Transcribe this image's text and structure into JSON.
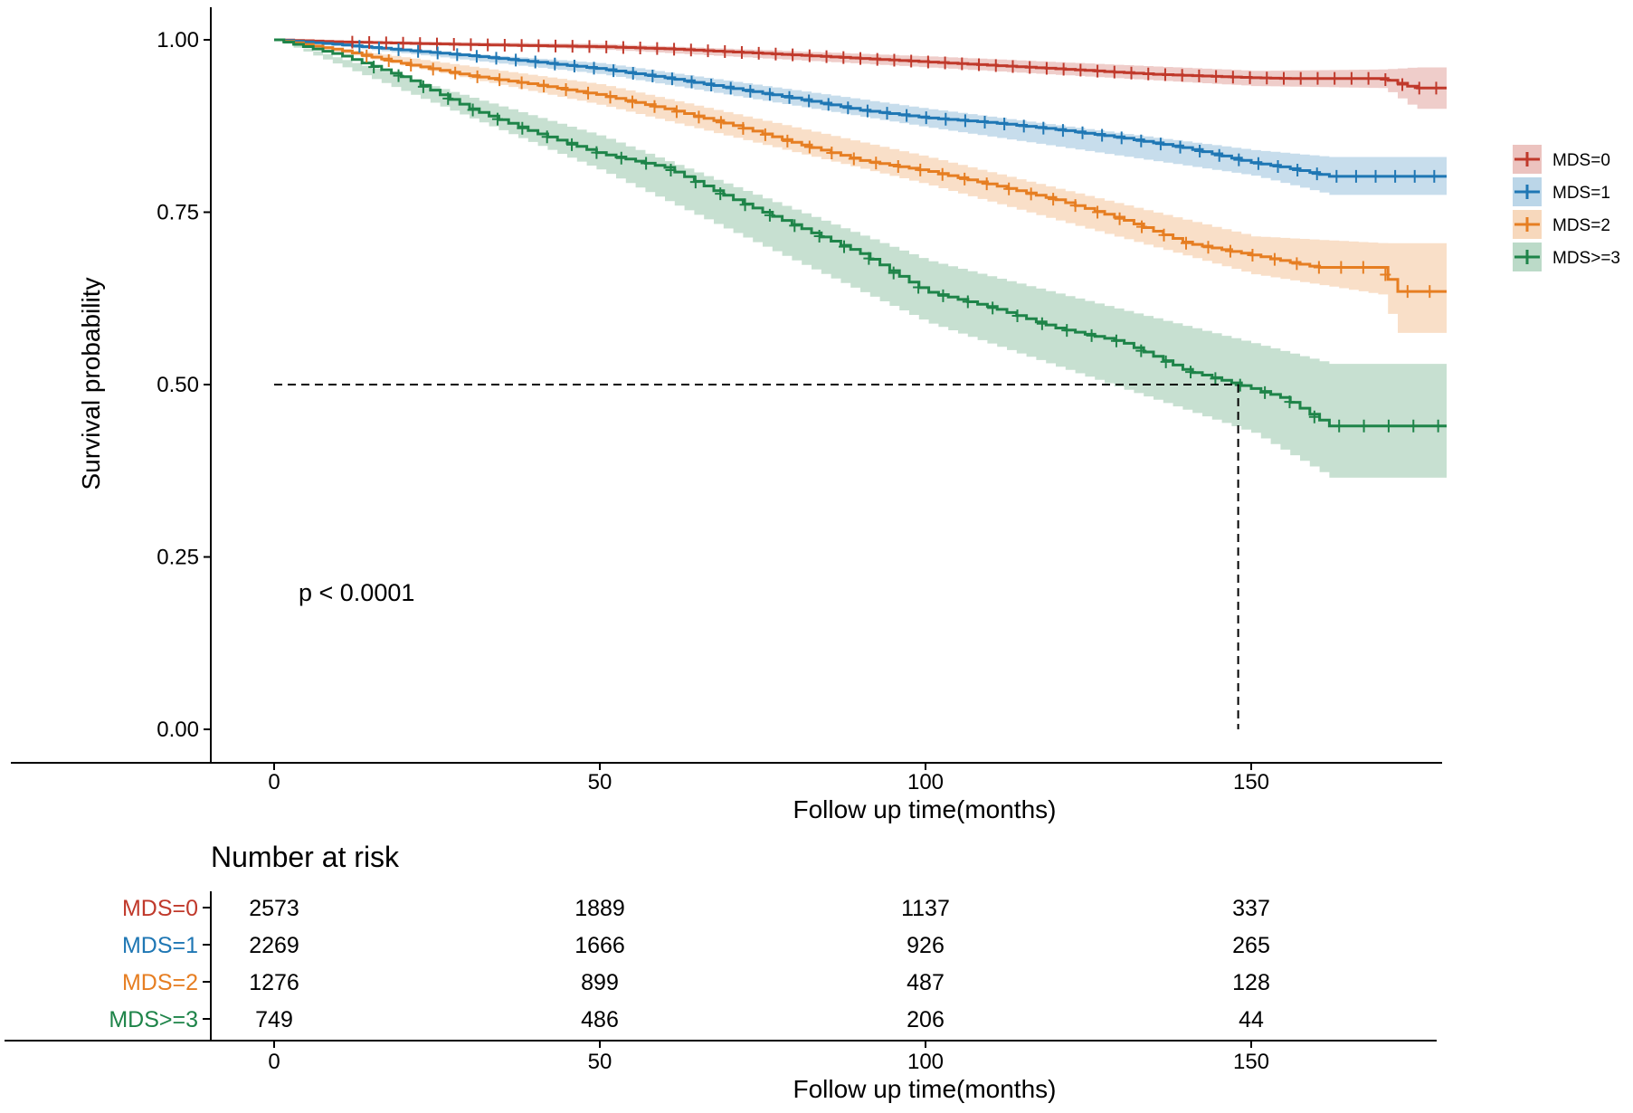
{
  "chart_data": {
    "type": "line",
    "subtype": "kaplan-meier",
    "xlabel": "Follow up time(months)",
    "ylabel": "Survival probability",
    "xlim": [
      -10,
      180
    ],
    "ylim": [
      0,
      1
    ],
    "x_ticks": [
      0,
      50,
      100,
      150
    ],
    "y_ticks": [
      0.0,
      0.25,
      0.5,
      0.75,
      1.0
    ],
    "y_tick_labels": [
      "0.00",
      "0.25",
      "0.50",
      "0.75",
      "1.00"
    ],
    "x_tick_labels": [
      "0",
      "50",
      "100",
      "150"
    ],
    "annotation": "p < 0.0001",
    "median_line": {
      "y": 0.5,
      "x": 148
    },
    "legend_position": "right",
    "series": [
      {
        "name": "MDS=0",
        "color": "#C0392B",
        "points": [
          [
            0,
            1.0
          ],
          [
            10,
            0.997
          ],
          [
            30,
            0.993
          ],
          [
            50,
            0.99
          ],
          [
            60,
            0.987
          ],
          [
            80,
            0.978
          ],
          [
            100,
            0.968
          ],
          [
            120,
            0.958
          ],
          [
            135,
            0.95
          ],
          [
            150,
            0.945
          ],
          [
            155,
            0.944
          ],
          [
            170,
            0.944
          ],
          [
            175,
            0.93
          ],
          [
            180,
            0.93
          ]
        ],
        "ci_upper": [
          [
            0,
            1.0
          ],
          [
            50,
            0.994
          ],
          [
            100,
            0.976
          ],
          [
            150,
            0.955
          ],
          [
            170,
            0.957
          ],
          [
            175,
            0.96
          ],
          [
            180,
            0.96
          ]
        ],
        "ci_lower": [
          [
            0,
            1.0
          ],
          [
            50,
            0.986
          ],
          [
            100,
            0.96
          ],
          [
            150,
            0.933
          ],
          [
            170,
            0.93
          ],
          [
            175,
            0.9
          ],
          [
            180,
            0.9
          ]
        ]
      },
      {
        "name": "MDS=1",
        "color": "#1F77B4",
        "points": [
          [
            0,
            1.0
          ],
          [
            10,
            0.993
          ],
          [
            20,
            0.985
          ],
          [
            30,
            0.977
          ],
          [
            40,
            0.968
          ],
          [
            50,
            0.958
          ],
          [
            60,
            0.945
          ],
          [
            70,
            0.93
          ],
          [
            80,
            0.915
          ],
          [
            90,
            0.898
          ],
          [
            100,
            0.887
          ],
          [
            110,
            0.88
          ],
          [
            120,
            0.87
          ],
          [
            130,
            0.858
          ],
          [
            140,
            0.843
          ],
          [
            150,
            0.822
          ],
          [
            155,
            0.815
          ],
          [
            162,
            0.802
          ],
          [
            170,
            0.802
          ],
          [
            180,
            0.802
          ]
        ],
        "ci_upper": [
          [
            0,
            1.0
          ],
          [
            50,
            0.966
          ],
          [
            100,
            0.9
          ],
          [
            150,
            0.84
          ],
          [
            162,
            0.83
          ],
          [
            180,
            0.83
          ]
        ],
        "ci_lower": [
          [
            0,
            1.0
          ],
          [
            50,
            0.95
          ],
          [
            100,
            0.873
          ],
          [
            150,
            0.803
          ],
          [
            162,
            0.775
          ],
          [
            180,
            0.775
          ]
        ]
      },
      {
        "name": "MDS=2",
        "color": "#E67E22",
        "points": [
          [
            0,
            1.0
          ],
          [
            10,
            0.985
          ],
          [
            20,
            0.965
          ],
          [
            30,
            0.948
          ],
          [
            40,
            0.935
          ],
          [
            50,
            0.92
          ],
          [
            60,
            0.9
          ],
          [
            70,
            0.877
          ],
          [
            80,
            0.85
          ],
          [
            90,
            0.825
          ],
          [
            100,
            0.81
          ],
          [
            110,
            0.79
          ],
          [
            120,
            0.768
          ],
          [
            130,
            0.74
          ],
          [
            140,
            0.705
          ],
          [
            150,
            0.688
          ],
          [
            160,
            0.67
          ],
          [
            170,
            0.67
          ],
          [
            172,
            0.635
          ],
          [
            180,
            0.635
          ]
        ],
        "ci_upper": [
          [
            0,
            1.0
          ],
          [
            50,
            0.935
          ],
          [
            100,
            0.83
          ],
          [
            150,
            0.715
          ],
          [
            170,
            0.705
          ],
          [
            180,
            0.705
          ]
        ],
        "ci_lower": [
          [
            0,
            1.0
          ],
          [
            50,
            0.905
          ],
          [
            100,
            0.79
          ],
          [
            150,
            0.66
          ],
          [
            170,
            0.63
          ],
          [
            172,
            0.575
          ],
          [
            180,
            0.575
          ]
        ]
      },
      {
        "name": "MDS>=3",
        "color": "#1E8449",
        "points": [
          [
            0,
            1.0
          ],
          [
            10,
            0.978
          ],
          [
            20,
            0.945
          ],
          [
            30,
            0.9
          ],
          [
            40,
            0.865
          ],
          [
            50,
            0.835
          ],
          [
            60,
            0.815
          ],
          [
            70,
            0.77
          ],
          [
            80,
            0.73
          ],
          [
            90,
            0.69
          ],
          [
            100,
            0.635
          ],
          [
            110,
            0.612
          ],
          [
            120,
            0.582
          ],
          [
            130,
            0.562
          ],
          [
            140,
            0.52
          ],
          [
            148,
            0.5
          ],
          [
            155,
            0.48
          ],
          [
            162,
            0.44
          ],
          [
            170,
            0.44
          ],
          [
            180,
            0.44
          ]
        ],
        "ci_upper": [
          [
            0,
            1.0
          ],
          [
            50,
            0.86
          ],
          [
            100,
            0.68
          ],
          [
            150,
            0.56
          ],
          [
            162,
            0.53
          ],
          [
            180,
            0.53
          ]
        ],
        "ci_lower": [
          [
            0,
            1.0
          ],
          [
            50,
            0.81
          ],
          [
            100,
            0.59
          ],
          [
            150,
            0.43
          ],
          [
            162,
            0.365
          ],
          [
            180,
            0.365
          ]
        ]
      }
    ],
    "risk_table": {
      "title": "Number at risk",
      "xlabel": "Follow up time(months)",
      "x_ticks": [
        0,
        50,
        100,
        150
      ],
      "x_tick_labels": [
        "0",
        "50",
        "100",
        "150"
      ],
      "rows": [
        {
          "label": "MDS=0",
          "color": "#C0392B",
          "values": [
            "2573",
            "1889",
            "1137",
            "337"
          ]
        },
        {
          "label": "MDS=1",
          "color": "#1F77B4",
          "values": [
            "2269",
            "1666",
            "926",
            "265"
          ]
        },
        {
          "label": "MDS=2",
          "color": "#E67E22",
          "values": [
            "1276",
            "899",
            "487",
            "128"
          ]
        },
        {
          "label": "MDS>=3",
          "color": "#1E8449",
          "values": [
            "749",
            "486",
            "206",
            "44"
          ]
        }
      ]
    }
  }
}
